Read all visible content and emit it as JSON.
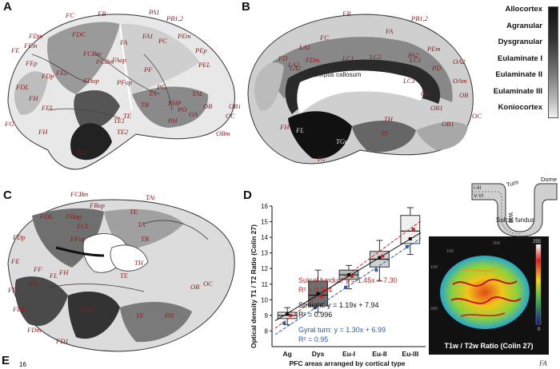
{
  "panels": {
    "a": "A",
    "b": "B",
    "c": "C",
    "d": "D",
    "e": "E"
  },
  "legend": {
    "items": [
      "Allocortex",
      "Agranular",
      "Dysgranular",
      "Eulaminate I",
      "Eulaminate II",
      "Eulaminate III",
      "Koniocortex"
    ]
  },
  "brain_a": {
    "labels": [
      "FC",
      "FB",
      "PA1",
      "PB1,2",
      "FDm",
      "FDC",
      "FCBm",
      "FA",
      "FA1",
      "PEm",
      "FE",
      "FEm",
      "PC",
      "FEp",
      "PEp",
      "FDp",
      "FEL",
      "FCBm",
      "FAop",
      "PEL",
      "PF",
      "FDL",
      "FDop",
      "PFop",
      "FH",
      "PG",
      "FFL",
      "TA",
      "TE",
      "TAL",
      "PHP",
      "FG",
      "FH",
      "TB",
      "PH",
      "OA",
      "OB",
      "OC",
      "TG",
      "TE2",
      "OBm",
      "OB1",
      "TE1",
      "PO"
    ]
  },
  "brain_b": {
    "labels": [
      "FB",
      "FA",
      "PB1,2",
      "FC",
      "FD",
      "LA1",
      "LC1",
      "LA2",
      "PA2",
      "LC2",
      "PEm",
      "FDm",
      "LA2",
      "LC3",
      "PD",
      "OA2",
      "LC1",
      "OAm",
      "OB",
      "OB1",
      "OA",
      "TH",
      "FH",
      "FL",
      "TGm",
      "TF",
      "TG",
      "OC",
      "OB1"
    ],
    "corpus_label": "Corpus callosum"
  },
  "brain_c": {
    "labels": [
      "FCBm",
      "FBop",
      "TAi",
      "FDL",
      "FDop",
      "FCL",
      "TE",
      "FDp",
      "FFop",
      "TA",
      "FE",
      "FF",
      "TB",
      "TH",
      "FG",
      "FL",
      "FH",
      "TE",
      "FE",
      "FDp",
      "OB",
      "OC",
      "TGm",
      "FDm",
      "PH",
      "TF",
      "FD1"
    ]
  },
  "sulcus_diagram": {
    "dome": "Dome",
    "turn": "Turn",
    "wall": "Wall",
    "layer_top": "I-III",
    "layer_bottom": "V-VI",
    "fundus": "Sulcal fundus"
  },
  "thermal": {
    "title": "T1w / T2w Ratio (Colin 27)",
    "colorbar_max": "255",
    "colorbar_min": "0",
    "axis_ticks": [
      "100",
      "200",
      "100",
      "200"
    ]
  },
  "chart_data": {
    "type": "box",
    "title": "",
    "xlabel": "PFC areas arranged by cortical type",
    "ylabel": "Optical density T1 / T2 Ratio (Colin 27)",
    "ylim": [
      7,
      16
    ],
    "yticks": [
      8,
      9,
      10,
      11,
      12,
      13,
      14,
      15,
      16
    ],
    "categories": [
      "Ag",
      "Dys",
      "Eu-I",
      "Eu-II",
      "Eu-III"
    ],
    "boxes": [
      {
        "min": 8.4,
        "q1": 8.8,
        "median": 9.0,
        "q3": 9.2,
        "max": 9.5
      },
      {
        "min": 9.2,
        "q1": 9.6,
        "median": 10.3,
        "q3": 11.2,
        "max": 11.9
      },
      {
        "min": 10.7,
        "q1": 11.3,
        "median": 11.6,
        "q3": 11.9,
        "max": 12.2
      },
      {
        "min": 11.2,
        "q1": 12.1,
        "median": 12.6,
        "q3": 13.1,
        "max": 13.8
      },
      {
        "min": 12.9,
        "q1": 13.6,
        "median": 14.4,
        "q3": 15.4,
        "max": 15.9
      }
    ],
    "series": [
      {
        "name": "Sulcal fundus",
        "color": "#c0282d",
        "slope": 1.45,
        "intercept": 7.3,
        "equation": "Sulcal fundus: y = 1.45x + 7.30",
        "r2": "R² = 0.964"
      },
      {
        "name": "Straight",
        "color": "#111111",
        "slope": 1.19,
        "intercept": 7.94,
        "equation": "Straight: y = 1.19x + 7.94",
        "r2": "R² = 0.996"
      },
      {
        "name": "Gyral turn",
        "color": "#2a5aa8",
        "slope": 1.3,
        "intercept": 6.99,
        "equation": "Gyral turn: y = 1.30x + 6.99",
        "r2": "R² = 0.95"
      }
    ],
    "points": {
      "sulcal": [
        9.0,
        10.2,
        11.5,
        12.8,
        14.5
      ],
      "straight": [
        9.1,
        10.4,
        11.6,
        12.7,
        13.9
      ],
      "gyral": [
        8.5,
        9.5,
        10.8,
        11.9,
        13.4
      ]
    }
  },
  "panel_e": {
    "first_tick": "16",
    "corner_label": "FA"
  }
}
